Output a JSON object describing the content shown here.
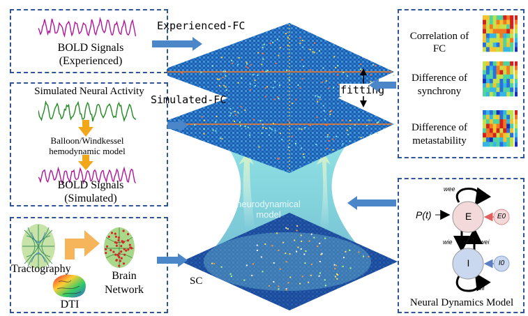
{
  "panels": {
    "bold_experienced": {
      "line1": "BOLD Signals",
      "line2": "(Experienced)"
    },
    "simulation": {
      "title": "Simulated Neural Activity",
      "model_line1": "Balloon/Windkessel",
      "model_line2": "hemodynamic model",
      "bold_line1": "BOLD Signals",
      "bold_line2": "(Simulated)"
    },
    "structure": {
      "tractography": "Tractography",
      "dti": "DTI",
      "brain_line1": "Brain",
      "brain_line2": "Network"
    },
    "metrics": {
      "m1_line1": "Correlation of",
      "m1_line2": "FC",
      "m2_line1": "Difference of",
      "m2_line2": "synchrony",
      "m3_line1": "Difference of",
      "m3_line2": "metastability"
    },
    "dynamics": {
      "title": "Neural Dynamics Model",
      "input": "P(t)",
      "node_e": "E",
      "node_i": "I",
      "ext_e": "E0",
      "ext_i": "I0",
      "w_ee": "wee",
      "w_ie": "wie",
      "w_ei": "wei",
      "w_ii": "wii"
    }
  },
  "center": {
    "experienced_fc": "Experienced-FC",
    "simulated_fc": "Simulated-FC",
    "fitting": "fitting",
    "sc": "SC",
    "model_line1": "neurodynamical",
    "model_line2": "model"
  },
  "colors": {
    "panel_border": "#2f5597",
    "arrow": "#4a86c8",
    "bold_wave": "#b0169a",
    "neural_wave": "#1f8a1f",
    "hemo_arrow": "#f2a71b",
    "node_e": "#f3d9d9",
    "node_i": "#c9d8ee",
    "funnel": "#6fd0d6",
    "matrix_bg": "#1c4fa0"
  }
}
